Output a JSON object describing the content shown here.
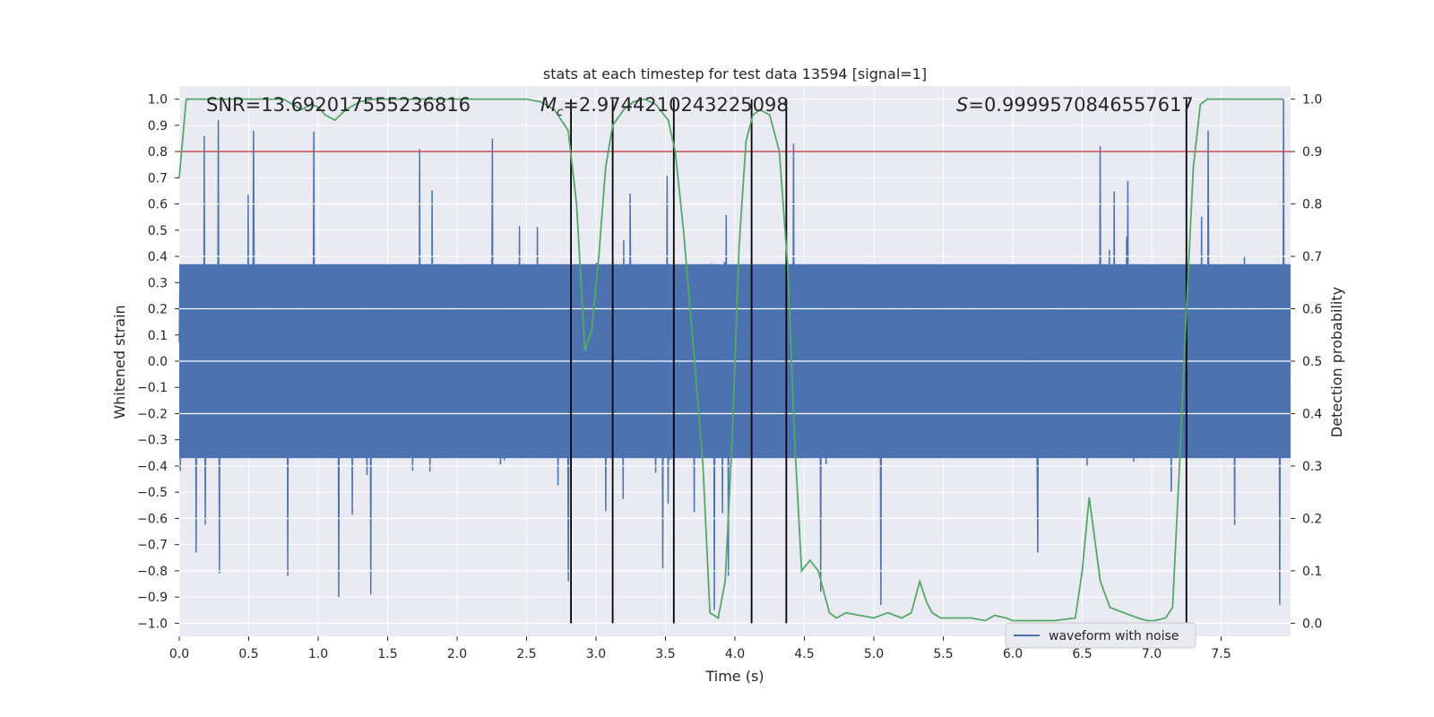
{
  "chart_data": {
    "type": "line",
    "title": "stats at each timestep for test data 13594 [signal=1]",
    "xlabel": "Time (s)",
    "ylabel": "Whitened strain",
    "y2label": "Detection probability",
    "xlim": [
      0.0,
      8.0
    ],
    "ylim": [
      -1.05,
      1.05
    ],
    "y2lim": [
      -0.025,
      1.025
    ],
    "x_ticks": [
      "0.0",
      "0.5",
      "1.0",
      "1.5",
      "2.0",
      "2.5",
      "3.0",
      "3.5",
      "4.0",
      "4.5",
      "5.0",
      "5.5",
      "6.0",
      "6.5",
      "7.0",
      "7.5"
    ],
    "y_ticks": [
      "1.0",
      "0.9",
      "0.8",
      "0.7",
      "0.6",
      "0.5",
      "0.4",
      "0.3",
      "0.2",
      "0.1",
      "0.0",
      "−0.1",
      "−0.2",
      "−0.3",
      "−0.4",
      "−0.5",
      "−0.6",
      "−0.7",
      "−0.8",
      "−0.9",
      "−1.0"
    ],
    "y2_ticks": [
      "1.0",
      "0.9",
      "0.8",
      "0.7",
      "0.6",
      "0.5",
      "0.4",
      "0.3",
      "0.2",
      "0.1",
      "0.0"
    ],
    "grid": true,
    "annotations": {
      "snr": "SNR=13.692017555236816",
      "mc_symbol": "M",
      "mc_sub": "c",
      "mc_value": "=2.9744210243225098",
      "s_symbol": "S",
      "s_value": "=0.9999570846557617"
    },
    "series": [
      {
        "name": "waveform with noise",
        "color": "#4c72b0",
        "description_kind": "noisy strain time series",
        "sample_rate_hz": 256,
        "duration_s": 8.0,
        "core_envelope": [
          -0.37,
          0.37
        ],
        "peaks": [
          {
            "x": 0.18,
            "y": 0.86
          },
          {
            "x": 0.28,
            "y": 0.92
          },
          {
            "x": 1.73,
            "y": 0.81
          },
          {
            "x": 4.42,
            "y": 0.83
          },
          {
            "x": 6.63,
            "y": 0.82
          },
          {
            "x": 7.95,
            "y": 1.0
          },
          {
            "x": 0.78,
            "y": -0.82
          },
          {
            "x": 1.15,
            "y": -0.9
          },
          {
            "x": 1.38,
            "y": -0.89
          },
          {
            "x": 2.8,
            "y": -0.84
          },
          {
            "x": 3.85,
            "y": -0.95
          },
          {
            "x": 5.05,
            "y": -0.93
          },
          {
            "x": 7.92,
            "y": -0.93
          },
          {
            "x": 0.12,
            "y": -0.73
          },
          {
            "x": 3.48,
            "y": -0.79
          }
        ]
      },
      {
        "name": "",
        "axis": "y2",
        "color": "#55a868",
        "x": [
          0.0,
          0.05,
          0.1,
          0.3,
          0.5,
          0.75,
          0.88,
          0.95,
          1.0,
          1.05,
          1.12,
          1.2,
          1.3,
          1.4,
          1.5,
          1.7,
          2.0,
          2.2,
          2.5,
          2.6,
          2.7,
          2.8,
          2.86,
          2.92,
          2.97,
          3.02,
          3.07,
          3.12,
          3.2,
          3.27,
          3.35,
          3.43,
          3.52,
          3.57,
          3.63,
          3.7,
          3.77,
          3.82,
          3.88,
          3.93,
          3.98,
          4.03,
          4.08,
          4.13,
          4.18,
          4.25,
          4.32,
          4.38,
          4.43,
          4.48,
          4.54,
          4.6,
          4.68,
          4.73,
          4.8,
          4.9,
          5.0,
          5.1,
          5.2,
          5.27,
          5.33,
          5.38,
          5.42,
          5.48,
          5.6,
          5.7,
          5.8,
          5.87,
          5.95,
          6.0,
          6.05,
          6.15,
          6.3,
          6.45,
          6.5,
          6.55,
          6.63,
          6.7,
          6.8,
          6.9,
          6.97,
          7.02,
          7.1,
          7.15,
          7.2,
          7.25,
          7.3,
          7.35,
          7.4,
          7.55,
          7.7,
          7.95
        ],
        "y": [
          0.85,
          1.0,
          1.0,
          1.0,
          1.0,
          1.0,
          0.98,
          0.99,
          0.985,
          0.97,
          0.96,
          0.98,
          0.995,
          1.0,
          1.0,
          1.0,
          1.0,
          1.0,
          1.0,
          0.995,
          0.98,
          0.94,
          0.8,
          0.52,
          0.56,
          0.7,
          0.87,
          0.95,
          0.98,
          0.995,
          1.0,
          0.99,
          0.96,
          0.9,
          0.75,
          0.53,
          0.3,
          0.02,
          0.01,
          0.08,
          0.35,
          0.72,
          0.92,
          0.97,
          0.98,
          0.97,
          0.9,
          0.68,
          0.35,
          0.1,
          0.12,
          0.1,
          0.02,
          0.01,
          0.02,
          0.015,
          0.01,
          0.02,
          0.01,
          0.02,
          0.08,
          0.04,
          0.02,
          0.01,
          0.01,
          0.01,
          0.005,
          0.015,
          0.01,
          0.005,
          0.005,
          0.005,
          0.005,
          0.01,
          0.1,
          0.24,
          0.08,
          0.03,
          0.02,
          0.01,
          0.005,
          0.005,
          0.01,
          0.03,
          0.3,
          0.6,
          0.87,
          0.99,
          1.0,
          1.0,
          1.0,
          1.0
        ]
      },
      {
        "name": "",
        "axis": "y2",
        "color": "#c44e52",
        "type": "hline",
        "y": 0.9
      }
    ],
    "vlines": [
      2.82,
      3.12,
      3.56,
      4.12,
      4.37,
      7.25
    ],
    "vline_color": "#000000",
    "legend": {
      "placement": "lower-right",
      "entries": [
        "waveform with noise"
      ]
    }
  }
}
